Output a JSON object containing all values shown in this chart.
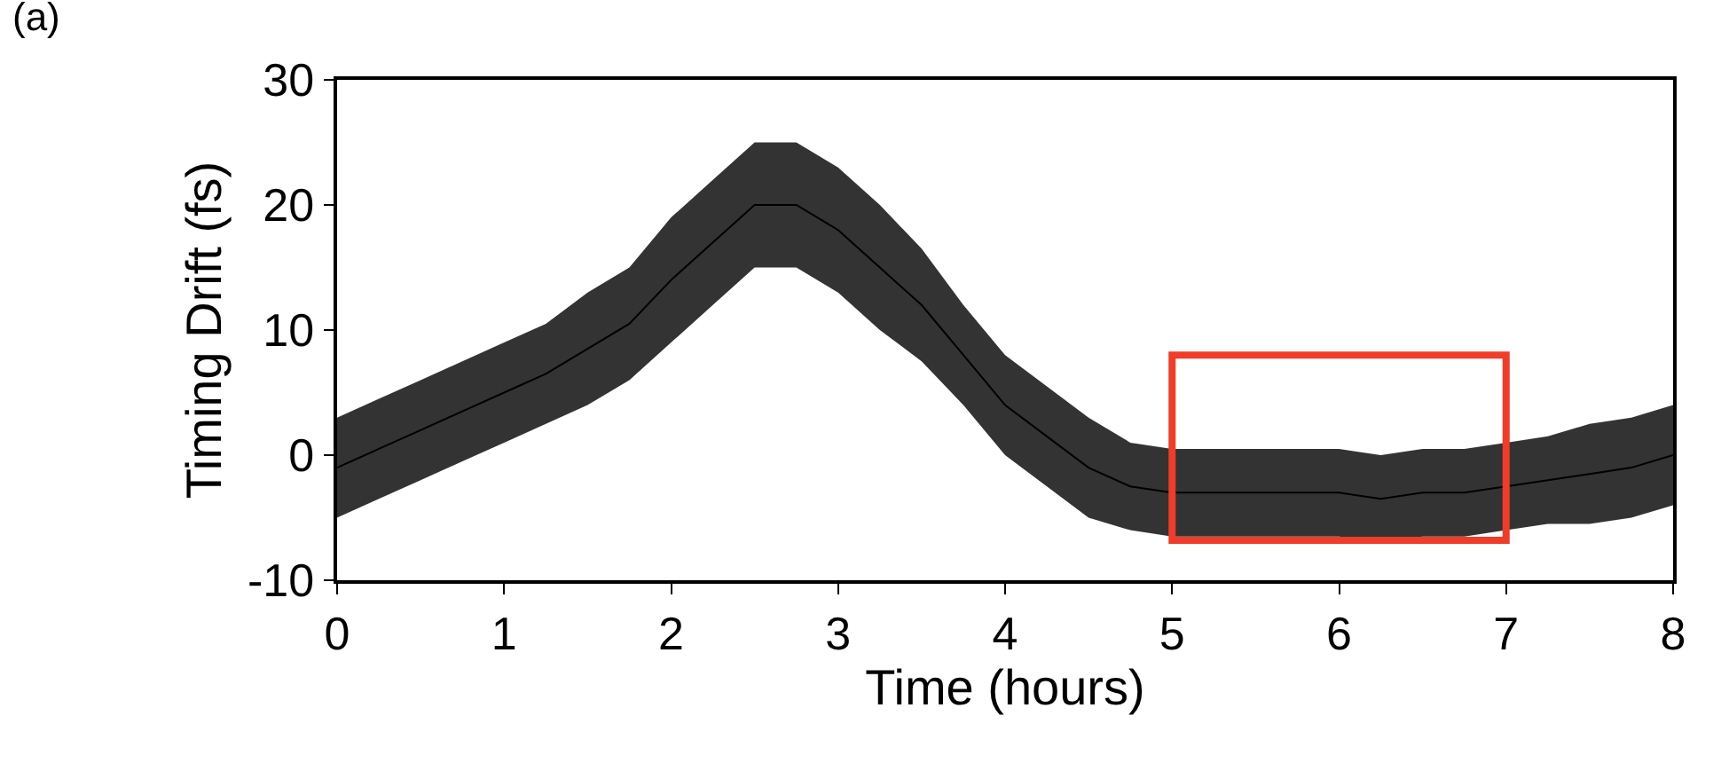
{
  "chart_data": {
    "type": "line",
    "xlabel": "Time (hours)",
    "ylabel": "Timing Drift (fs)",
    "annotations": [
      "(a)"
    ],
    "xlim": [
      0,
      8
    ],
    "xticks": [
      0,
      1,
      2,
      3,
      4,
      5,
      6,
      7,
      8
    ],
    "ylim": [
      -10,
      30
    ],
    "yticks": [
      -10,
      0,
      10,
      20,
      30
    ],
    "marker": "none",
    "line_style": "solid",
    "x": [
      0,
      0.25,
      0.5,
      0.75,
      1,
      1.25,
      1.5,
      1.75,
      2,
      2.25,
      2.5,
      2.75,
      3,
      3.25,
      3.5,
      3.75,
      4,
      4.25,
      4.5,
      4.75,
      5,
      5.25,
      5.5,
      5.75,
      6,
      6.25,
      6.5,
      6.75,
      7,
      7.25,
      7.5,
      7.75,
      8
    ],
    "series": [
      {
        "color": "#000000",
        "values": [
          -1,
          0.5,
          2,
          3.5,
          5,
          6.5,
          8.5,
          10.5,
          14,
          17,
          20,
          20,
          18,
          15,
          12,
          8,
          4,
          1.5,
          -1,
          -2.5,
          -3,
          -3,
          -3,
          -3,
          -3,
          -3.5,
          -3,
          -3,
          -2.5,
          -2,
          -1.5,
          -1,
          0
        ],
        "lower": [
          -5,
          -3.5,
          -2,
          -0.5,
          1,
          2.5,
          4,
          6,
          9,
          12,
          15,
          15,
          13,
          10,
          7.5,
          4,
          0,
          -2.5,
          -5,
          -6,
          -6.5,
          -6.5,
          -6.5,
          -6.5,
          -6.5,
          -7,
          -6.5,
          -6.5,
          -6,
          -5.5,
          -5.5,
          -5,
          -4
        ],
        "upper": [
          3,
          4.5,
          6,
          7.5,
          9,
          10.5,
          13,
          15,
          19,
          22,
          25,
          25,
          23,
          20,
          16.5,
          12,
          8,
          5.5,
          3,
          1,
          0.5,
          0.5,
          0.5,
          0.5,
          0.5,
          0,
          0.5,
          0.5,
          1,
          1.5,
          2.5,
          3,
          4
        ]
      }
    ]
  }
}
